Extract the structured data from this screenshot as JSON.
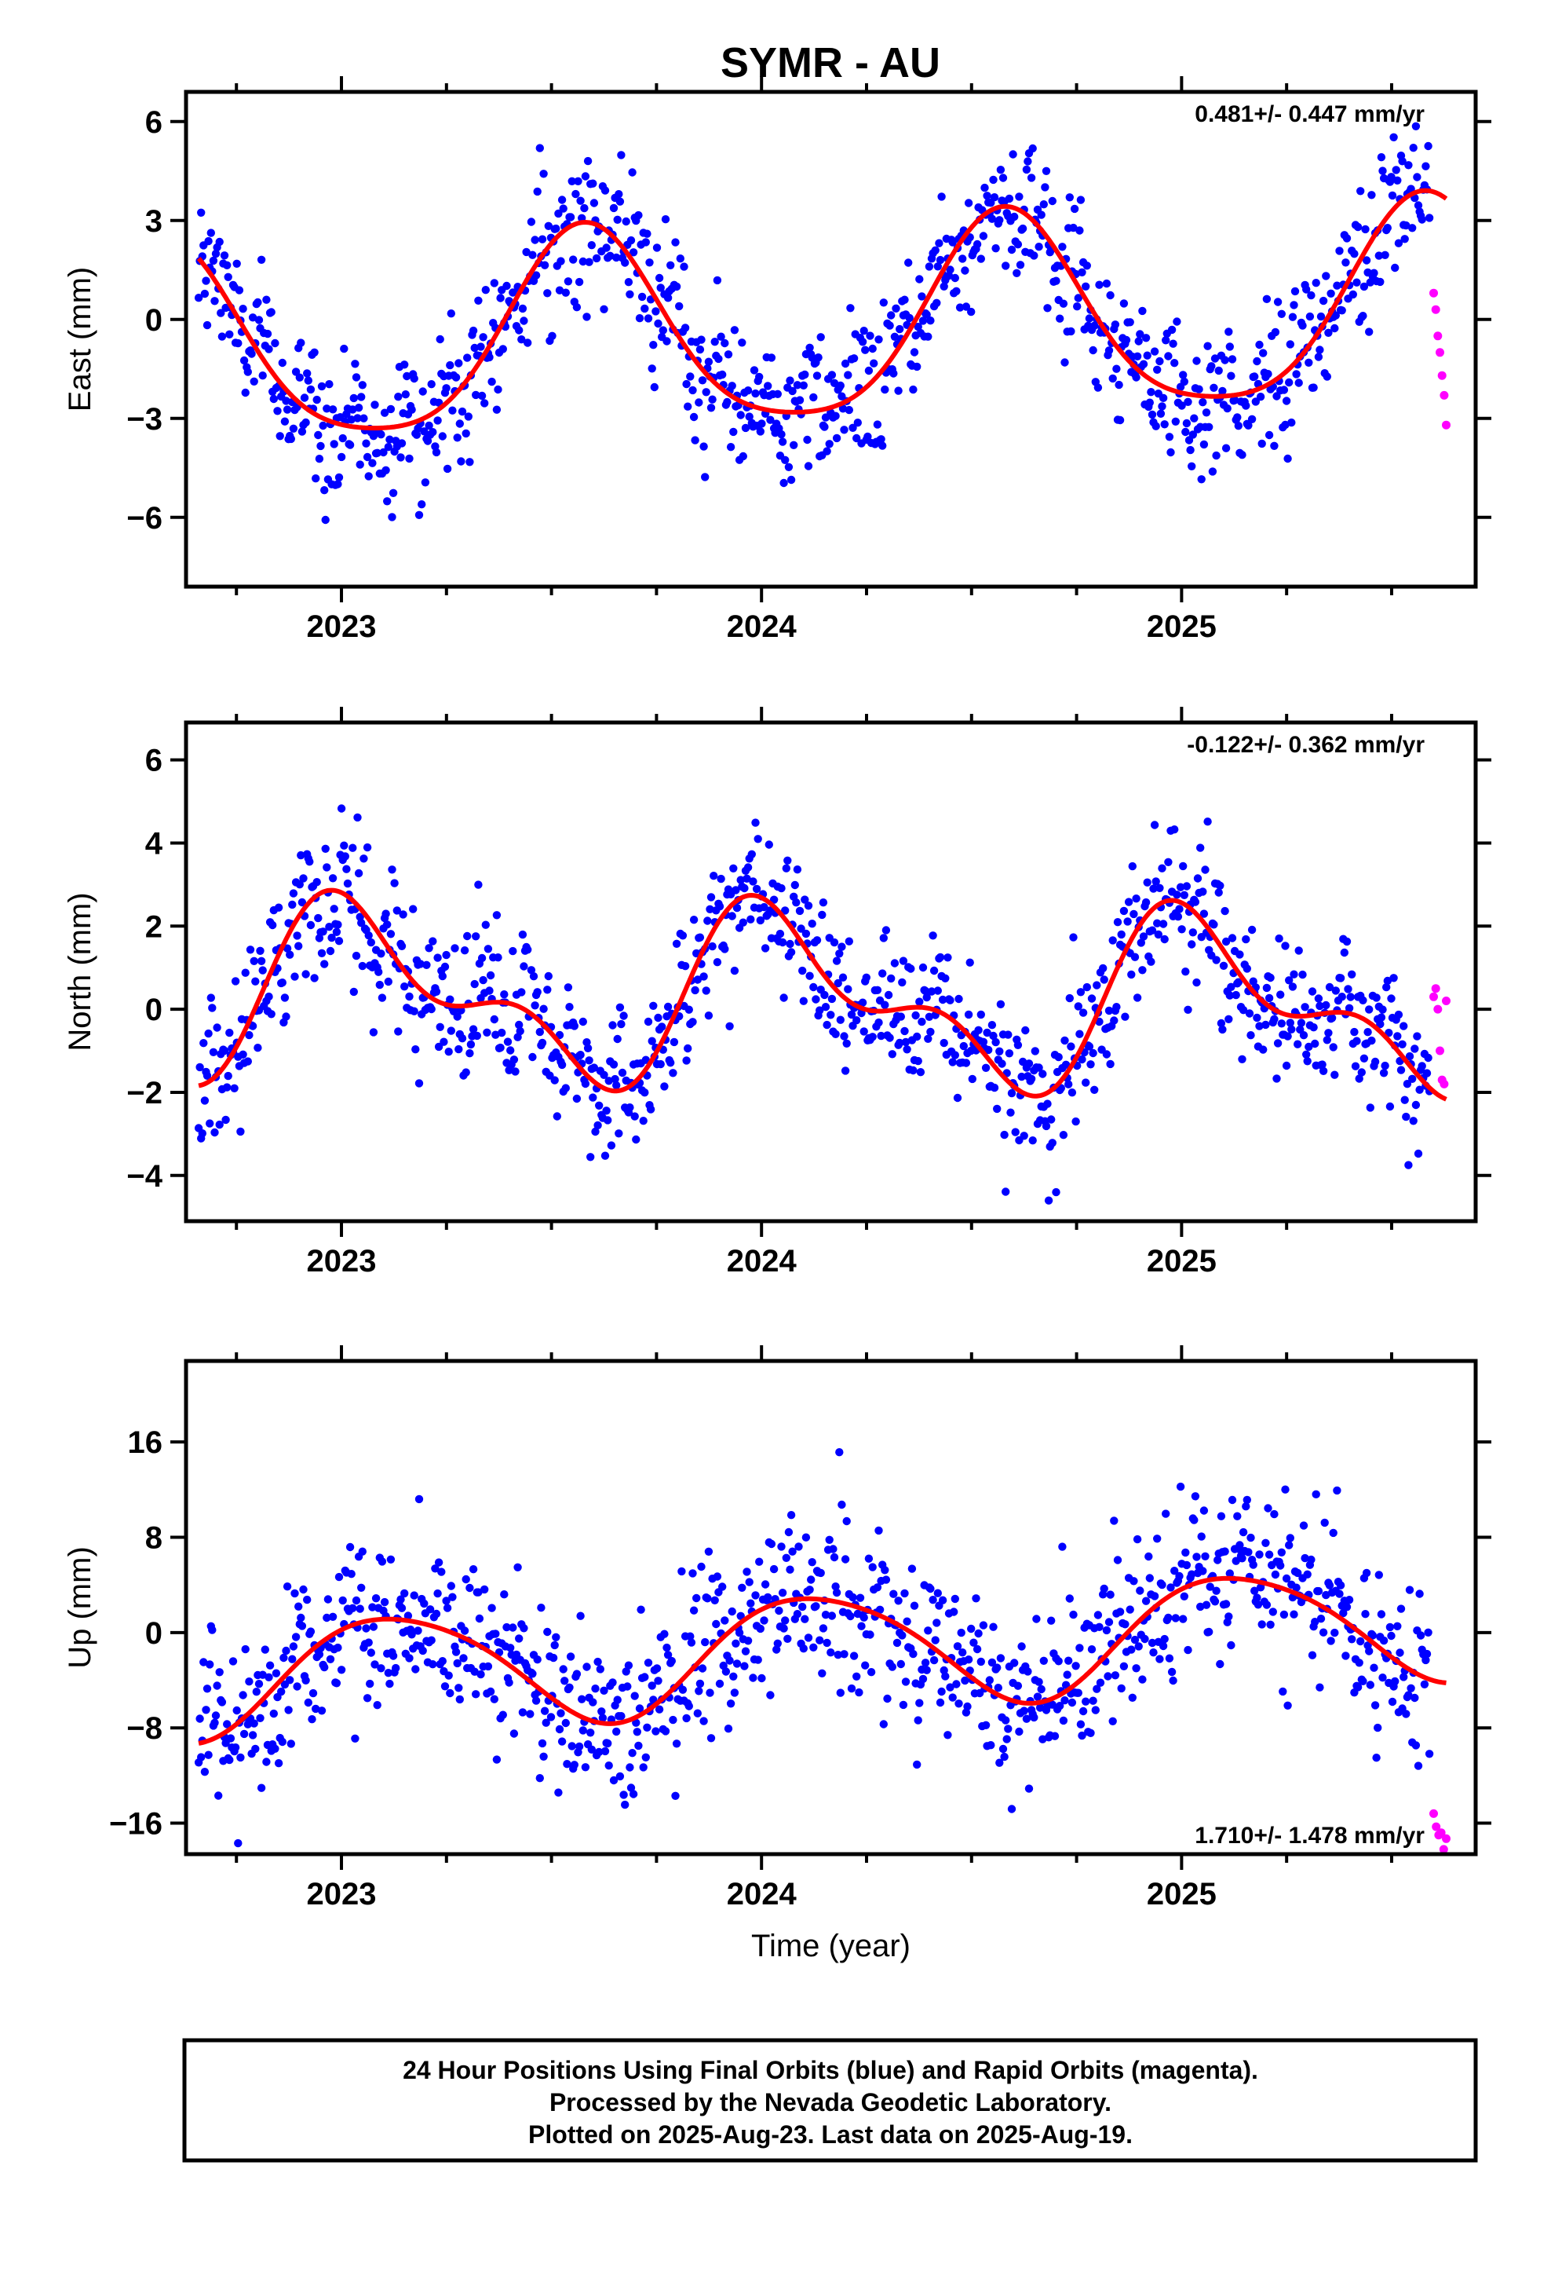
{
  "title": "SYMR - AU",
  "footer": {
    "lines": [
      "24 Hour Positions Using Final Orbits (blue) and Rapid Orbits (magenta).",
      "Processed by the Nevada Geodetic Laboratory.",
      "Plotted on 2025-Aug-23. Last data on 2025-Aug-19."
    ]
  },
  "colors": {
    "final_orbits": "#0000ff",
    "rapid_orbits": "#ff00ff",
    "fit": "#ff0000",
    "axes": "#000000"
  },
  "chart_data": [
    {
      "type": "scatter",
      "ylabel": "East (mm)",
      "xlabel": "",
      "xlim": [
        2022.63,
        2025.7
      ],
      "ylim": [
        -8.1,
        6.9
      ],
      "xticks": [
        2023,
        2024,
        2025
      ],
      "yticks": [
        6,
        3,
        0,
        -3,
        -6
      ],
      "rate": "0.481+/- 0.447 mm/yr",
      "rate_position": "top-right",
      "grid": false,
      "fit": {
        "offset": -0.4,
        "trend": 0.481,
        "a_annual": 3.0,
        "phase_annual": 0.33,
        "a_semi": 0.55,
        "phase_semi": 0.45,
        "wobble_amp": 0.5
      },
      "scatter_sigma": 1.05,
      "final_series": {
        "start": 2022.66,
        "end": 2025.59,
        "count": 1000
      },
      "rapid_series": {
        "start": 2025.6,
        "end": 2025.63,
        "values": [
          0.8,
          0.3,
          -0.5,
          -1.0,
          -1.7,
          -2.3,
          -3.2
        ]
      }
    },
    {
      "type": "scatter",
      "ylabel": "North (mm)",
      "xlabel": "",
      "xlim": [
        2022.63,
        2025.7
      ],
      "ylim": [
        -5.1,
        6.9
      ],
      "xticks": [
        2023,
        2024,
        2025
      ],
      "yticks": [
        6,
        4,
        2,
        0,
        -2,
        -4
      ],
      "rate": "-0.122+/- 0.362 mm/yr",
      "rate_position": "top-right",
      "grid": false,
      "fit": {
        "offset": 0.25,
        "trend": -0.122,
        "a_annual": 1.75,
        "phase_annual": 0.8,
        "a_semi": 1.0,
        "phase_semi": 0.82,
        "wobble_amp": 0.35
      },
      "scatter_sigma": 0.85,
      "final_series": {
        "start": 2022.66,
        "end": 2025.59,
        "count": 1000
      },
      "rapid_series": {
        "start": 2025.6,
        "end": 2025.63,
        "values": [
          0.3,
          0.5,
          0.0,
          -1.0,
          -1.7,
          -1.8,
          0.2
        ]
      }
    },
    {
      "type": "scatter",
      "ylabel": "Up (mm)",
      "xlabel": "Time (year)",
      "xlim": [
        2022.63,
        2025.7
      ],
      "ylim": [
        -18.6,
        22.8
      ],
      "xticks": [
        2023,
        2024,
        2025
      ],
      "yticks": [
        16,
        8,
        0,
        -8,
        -16
      ],
      "rate": "1.710+/- 1.478 mm/yr",
      "rate_position": "bottom-right",
      "grid": false,
      "fit": {
        "offset": -1.7,
        "trend": 1.71,
        "a_annual": 4.8,
        "phase_annual": 0.88,
        "a_semi": 0.6,
        "phase_semi": 0.3,
        "wobble_amp": 1.0
      },
      "scatter_sigma": 3.6,
      "final_series": {
        "start": 2022.66,
        "end": 2025.59,
        "count": 1000
      },
      "rapid_series": {
        "start": 2025.6,
        "end": 2025.63,
        "values": [
          -15.2,
          -16.3,
          -17.0,
          -16.8,
          -18.2,
          -17.3
        ]
      }
    }
  ]
}
